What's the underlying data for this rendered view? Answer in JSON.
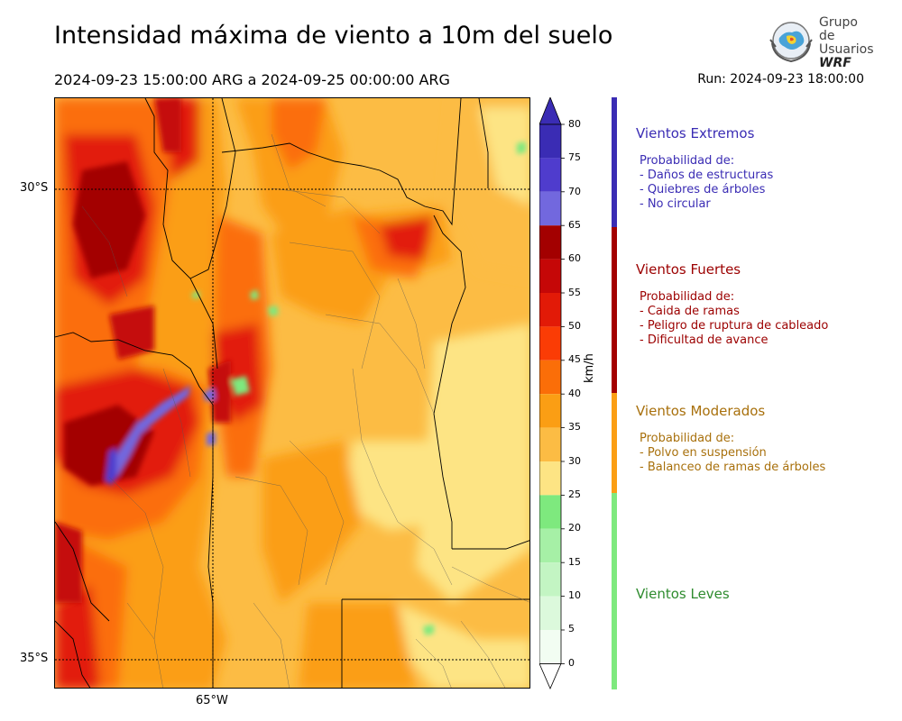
{
  "header": {
    "title": "Intensidad máxima de viento a 10m del suelo",
    "period": "2024-09-23 15:00:00 ARG  a  2024-09-25 00:00:00 ARG",
    "run": "Run: 2024-09-23 18:00:00"
  },
  "logo": {
    "line1": "Grupo de",
    "line2": "Usuarios",
    "line3": "WRF"
  },
  "map": {
    "lat_labels": [
      "30°S",
      "35°S"
    ],
    "lon_labels": [
      "65°W"
    ]
  },
  "colorbar": {
    "unit": "km/h",
    "ticks": [
      "80",
      "75",
      "70",
      "65",
      "60",
      "55",
      "50",
      "45",
      "40",
      "35",
      "30",
      "25",
      "20",
      "15",
      "10",
      "5",
      "0"
    ],
    "colors": {
      "0-5": "#f2fdf2",
      "5-10": "#dcf9dc",
      "10-15": "#c3f5c3",
      "15-20": "#a6f0a6",
      "20-25": "#7ee97e",
      "25-30": "#fde484",
      "30-35": "#fcbc44",
      "35-40": "#fb9e14",
      "40-45": "#fb6e08",
      "45-50": "#fb3c05",
      "50-55": "#e21a07",
      "55-60": "#c50707",
      "60-65": "#a30000",
      "65-70": "#7268de",
      "70-75": "#4f3ccd",
      "75-80": "#3a2cb4"
    }
  },
  "categories": [
    {
      "name": "Vientos Extremos",
      "color": "#3a2cb4",
      "heading": "Probabilidad de:",
      "items": [
        "- Daños de estructuras",
        "- Quiebres de árboles",
        "- No circular"
      ]
    },
    {
      "name": "Vientos Fuertes",
      "color": "#9c0000",
      "heading": "Probabilidad de:",
      "items": [
        "- Caida de ramas",
        "- Peligro de ruptura de cableado",
        "- Dificultad de avance"
      ]
    },
    {
      "name": "Vientos Moderados",
      "color": "#a8700c",
      "heading": "Probabilidad de:",
      "items": [
        "- Polvo en suspensión",
        "- Balanceo de ramas de árboles"
      ]
    },
    {
      "name": "Vientos Leves",
      "color": "#2e8b2e",
      "heading": "",
      "items": []
    }
  ]
}
